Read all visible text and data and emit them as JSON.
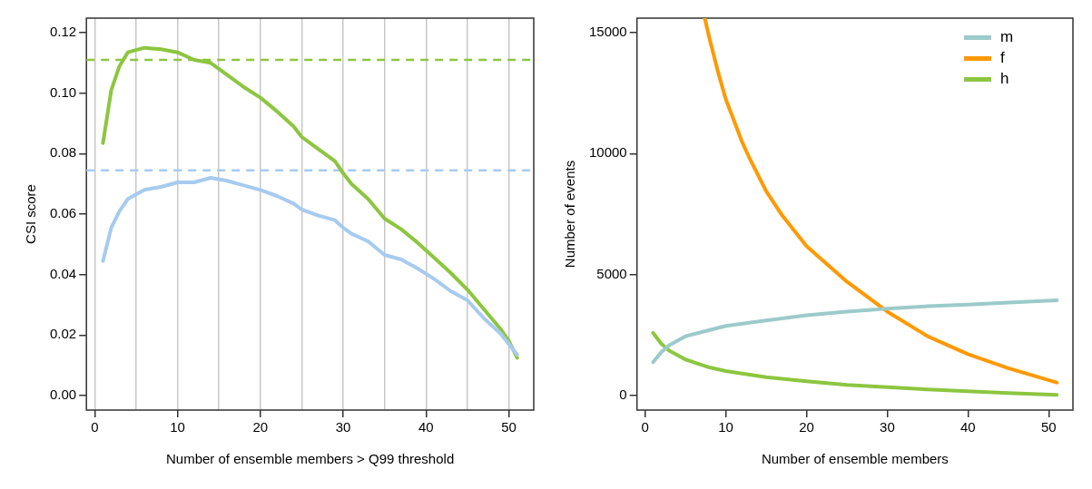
{
  "chart_data": [
    {
      "type": "line",
      "xlabel": "Number of ensemble members > Q99 threshold",
      "ylabel": "CSI score",
      "xlim": [
        -1,
        53
      ],
      "xticks": [
        0,
        {
          "value": 5,
          "label": null
        },
        10,
        {
          "value": 15,
          "label": null
        },
        20,
        {
          "value": 25,
          "label": null
        },
        30,
        {
          "value": 35,
          "label": null
        },
        40,
        {
          "value": 45,
          "label": null
        },
        50
      ],
      "ylim": [
        -0.0048,
        0.1248
      ],
      "yticks": [
        {
          "value": 0,
          "label": "0.00"
        },
        0.02,
        0.04,
        0.06,
        0.08,
        {
          "value": 0.1,
          "label": "0.10"
        },
        0.12
      ],
      "grid": "x",
      "series": [
        {
          "color": "#a6cbef",
          "x": [
            1,
            2,
            3,
            4,
            6,
            8,
            10,
            12,
            14,
            16,
            18,
            20,
            22,
            24,
            25,
            27,
            29,
            30,
            31,
            33,
            35,
            37,
            39,
            41,
            43,
            45,
            47,
            49,
            51
          ],
          "values": [
            0.0445,
            0.0555,
            0.061,
            0.065,
            0.068,
            0.069,
            0.0705,
            0.0705,
            0.072,
            0.071,
            0.0695,
            0.068,
            0.066,
            0.0635,
            0.0615,
            0.0595,
            0.058,
            0.0555,
            0.0535,
            0.051,
            0.0465,
            0.045,
            0.042,
            0.0385,
            0.0345,
            0.0315,
            0.0255,
            0.0205,
            0.0135
          ]
        },
        {
          "color": "#8cc63f",
          "x": [
            1,
            2,
            3,
            4,
            6,
            8,
            10,
            12,
            14,
            16,
            18,
            20,
            22,
            24,
            25,
            27,
            29,
            30,
            31,
            33,
            35,
            37,
            39,
            41,
            43,
            45,
            47,
            49,
            50,
            51
          ],
          "values": [
            0.0835,
            0.101,
            0.109,
            0.1135,
            0.115,
            0.1145,
            0.1135,
            0.111,
            0.11,
            0.106,
            0.102,
            0.0985,
            0.094,
            0.089,
            0.0855,
            0.0815,
            0.0775,
            0.0735,
            0.07,
            0.065,
            0.0585,
            0.055,
            0.0505,
            0.0455,
            0.0405,
            0.035,
            0.0285,
            0.022,
            0.018,
            0.0125
          ]
        }
      ],
      "ref_lines": [
        {
          "axis": "y",
          "value": 0.111,
          "color": "#8cc63f",
          "line_style": "dashed"
        },
        {
          "axis": "y",
          "value": 0.0745,
          "color": "#a6cbef",
          "line_style": "dashed"
        }
      ]
    },
    {
      "type": "line",
      "xlabel": "Number of ensemble members",
      "ylabel": "Number of events",
      "xlim": [
        -1,
        53
      ],
      "xticks": [
        0,
        10,
        20,
        30,
        40,
        50
      ],
      "ylim": [
        -600,
        15600
      ],
      "yticks": [
        0,
        5000,
        10000,
        15000
      ],
      "legend": "top right",
      "series": [
        {
          "name": "m",
          "color": "#9ccaca",
          "x": [
            1,
            2,
            3,
            5,
            10,
            15,
            20,
            25,
            30,
            35,
            40,
            45,
            51
          ],
          "values": [
            1380,
            1790,
            2080,
            2450,
            2880,
            3100,
            3320,
            3470,
            3590,
            3690,
            3760,
            3840,
            3940
          ]
        },
        {
          "name": "f",
          "color": "#ff9900",
          "x": [
            7.4,
            8,
            9,
            10,
            11,
            12,
            13,
            15,
            17,
            20,
            25,
            30,
            35,
            40,
            45,
            51
          ],
          "values": [
            15600,
            14740,
            13430,
            12250,
            11380,
            10500,
            9770,
            8450,
            7440,
            6180,
            4710,
            3470,
            2450,
            1710,
            1130,
            540
          ]
        },
        {
          "name": "h",
          "color": "#8cc63f",
          "x": [
            1,
            2,
            3,
            5,
            8,
            10,
            15,
            20,
            25,
            30,
            35,
            40,
            45,
            51
          ],
          "values": [
            2590,
            2150,
            1860,
            1490,
            1160,
            1010,
            760,
            590,
            440,
            350,
            250,
            180,
            100,
            30
          ]
        }
      ]
    }
  ]
}
